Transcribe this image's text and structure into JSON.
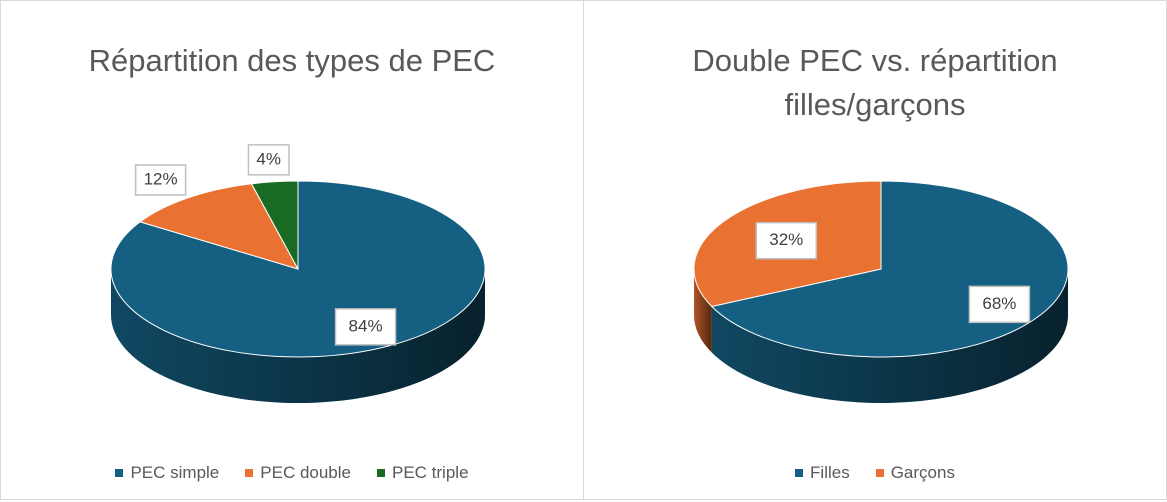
{
  "chart_data": [
    {
      "type": "pie3d",
      "title": "Répartition des types de PEC",
      "categories": [
        "PEC simple",
        "PEC double",
        "PEC triple"
      ],
      "values": [
        84,
        12,
        4
      ],
      "value_labels": [
        "84%",
        "12%",
        "4%"
      ],
      "colors": [
        "#156082",
        "#e97132",
        "#196b24"
      ],
      "legend": "bottom"
    },
    {
      "type": "pie3d",
      "title": "Double PEC vs. répartition filles/garçons",
      "categories": [
        "Filles",
        "Garçons"
      ],
      "values": [
        68,
        32
      ],
      "value_labels": [
        "68%",
        "32%"
      ],
      "colors": [
        "#156082",
        "#e97132"
      ],
      "legend": "bottom"
    }
  ]
}
